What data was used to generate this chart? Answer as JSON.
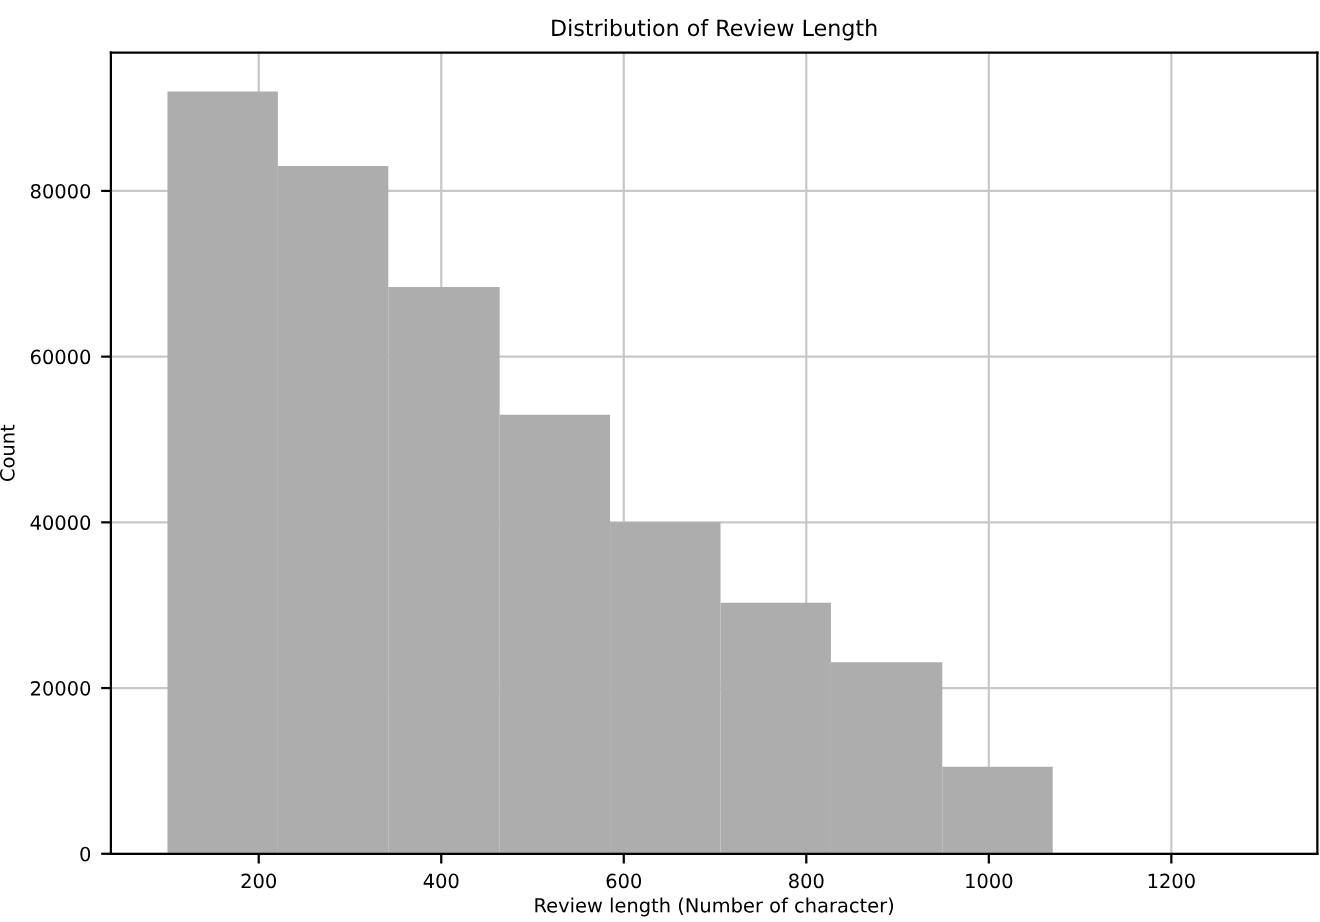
{
  "chart_data": {
    "type": "histogram",
    "title": "Distribution of Review Length",
    "xlabel": "Review length (Number of character)",
    "ylabel": "Count",
    "bins": [
      100,
      221,
      342,
      464,
      585,
      706,
      827,
      949,
      1070
    ],
    "values": [
      92000,
      83000,
      68400,
      53000,
      40000,
      30300,
      23100,
      10500
    ],
    "color": "#adadad",
    "xlim": [
      38,
      1360
    ],
    "ylim": [
      0,
      96700
    ],
    "xticks": [
      200,
      400,
      600,
      800,
      1000,
      1200
    ],
    "yticks": [
      0,
      20000,
      40000,
      60000,
      80000
    ],
    "grid": true
  }
}
